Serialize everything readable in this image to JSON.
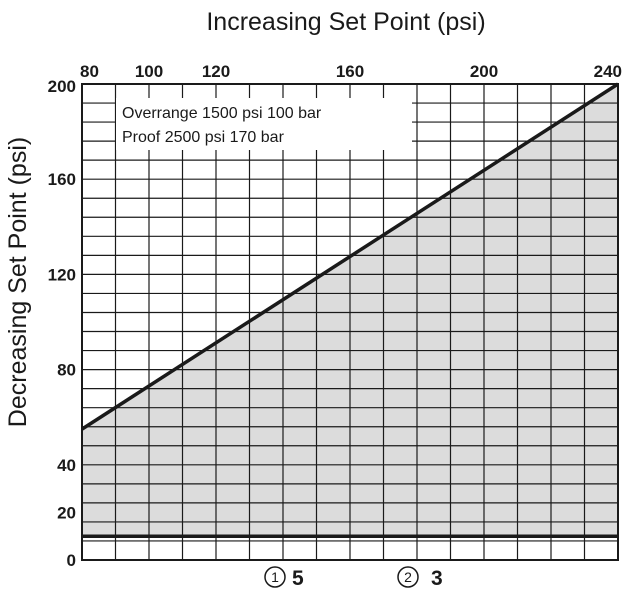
{
  "chart_data": {
    "type": "area",
    "title": "Increasing Set Point (psi)",
    "xlabel": "Increasing Set Point (psi)",
    "ylabel": "Decreasing Set Point (psi)",
    "xlim": [
      80,
      240
    ],
    "ylim": [
      0,
      200
    ],
    "x_ticks": [
      "80",
      "100",
      "120",
      "160",
      "200",
      "240"
    ],
    "y_ticks": [
      "200",
      "160",
      "120",
      "80",
      "40",
      "20",
      "0"
    ],
    "x_axis_position": "top",
    "grid": true,
    "series": [
      {
        "x": [
          80,
          240
        ],
        "y": [
          55,
          200
        ]
      }
    ],
    "lower_limit": 10,
    "shaded_region": "between lower limit and diagonal line",
    "fill_color": "#dcdcdc",
    "line_color": "#1a1a1a",
    "annotations": [
      "Overrange 1500 psi 100 bar",
      "Proof 2500 psi 170 bar"
    ],
    "footnotes": [
      {
        "marker": "1",
        "value": "5"
      },
      {
        "marker": "2",
        "value": "3"
      }
    ]
  }
}
